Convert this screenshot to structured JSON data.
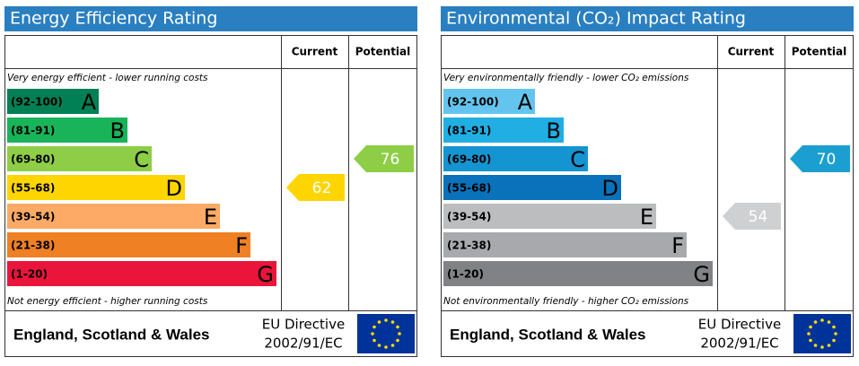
{
  "panels": [
    {
      "title": "Energy Efficiency Rating",
      "columns": [
        "Current",
        "Potential"
      ],
      "top_note": "Very energy efficient - lower running costs",
      "bottom_note": "Not energy efficient - higher running costs",
      "bands": [
        {
          "range": "(92-100)",
          "letter": "A",
          "color": "#008054"
        },
        {
          "range": "(81-91)",
          "letter": "B",
          "color": "#19b459"
        },
        {
          "range": "(69-80)",
          "letter": "C",
          "color": "#8dce46"
        },
        {
          "range": "(55-68)",
          "letter": "D",
          "color": "#ffd500"
        },
        {
          "range": "(39-54)",
          "letter": "E",
          "color": "#fcaa65"
        },
        {
          "range": "(21-38)",
          "letter": "F",
          "color": "#ef8023"
        },
        {
          "range": "(1-20)",
          "letter": "G",
          "color": "#e9153b"
        }
      ],
      "current": 62,
      "current_color": "#ffd500",
      "potential": 76,
      "potential_color": "#8dce46",
      "footer": {
        "region": "England, Scotland & Wales",
        "directive": [
          "EU Directive",
          "2002/91/EC"
        ]
      }
    },
    {
      "title": "Environmental (CO₂) Impact Rating",
      "columns": [
        "Current",
        "Potential"
      ],
      "top_note": "Very environmentally friendly - lower CO₂ emissions",
      "bottom_note": "Not environmentally friendly - higher CO₂ emissions",
      "bands": [
        {
          "range": "(92-100)",
          "letter": "A",
          "color": "#63c5ef"
        },
        {
          "range": "(81-91)",
          "letter": "B",
          "color": "#20aee3"
        },
        {
          "range": "(69-80)",
          "letter": "C",
          "color": "#1594d2"
        },
        {
          "range": "(55-68)",
          "letter": "D",
          "color": "#0a72bb"
        },
        {
          "range": "(39-54)",
          "letter": "E",
          "color": "#bbbdbf"
        },
        {
          "range": "(21-38)",
          "letter": "F",
          "color": "#a7a9ac"
        },
        {
          "range": "(1-20)",
          "letter": "G",
          "color": "#808285"
        }
      ],
      "current": 54,
      "current_color": "#cfd0d2",
      "potential": 70,
      "potential_color": "#1a9fd0",
      "footer": {
        "region": "England, Scotland & Wales",
        "directive": [
          "EU Directive",
          "2002/91/EC"
        ]
      }
    }
  ]
}
